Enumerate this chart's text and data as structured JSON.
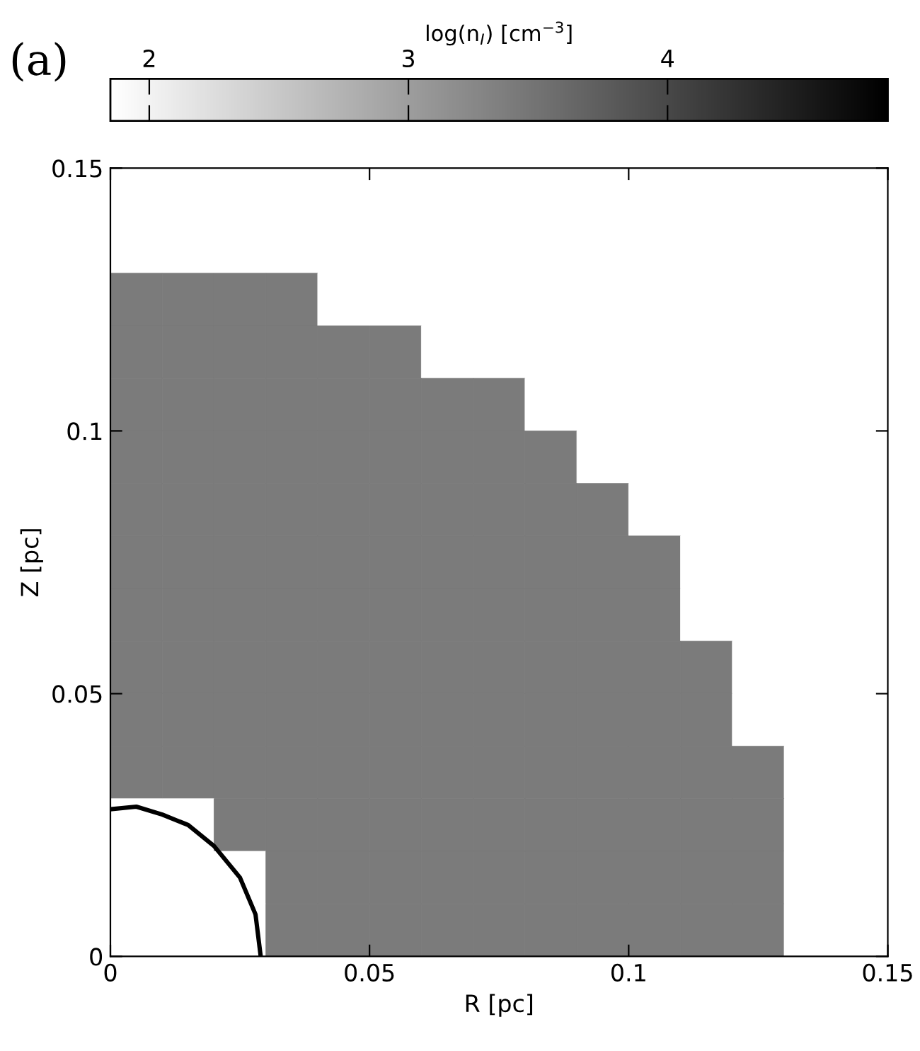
{
  "chart_data": {
    "type": "heatmap",
    "xlabel": "R [pc]",
    "ylabel": "Z [pc]",
    "clabel": "log(n$_{I}$) [cm$^{−3}$]",
    "annotations": [
      "(a)"
    ],
    "xlim": [
      0,
      0.15
    ],
    "ylim": [
      0,
      0.15
    ],
    "xticks": [
      0,
      0.05,
      0.1,
      0.15
    ],
    "yticks": [
      0,
      0.05,
      0.1,
      0.15
    ],
    "clim": [
      1.85,
      4.85
    ],
    "cticks": [
      2,
      3,
      4
    ],
    "cells": [
      [
        1.85,
        1.85,
        1.85,
        1.85,
        1.85,
        1.85,
        1.85,
        1.85,
        1.85,
        1.85,
        1.85,
        1.85,
        1.85,
        1.85,
        1.85
      ],
      [
        1.85,
        1.85,
        1.85,
        1.85,
        1.85,
        1.85,
        1.85,
        1.85,
        1.85,
        1.85,
        1.85,
        1.85,
        1.85,
        1.85,
        1.85
      ],
      [
        3.4,
        3.4,
        3.4,
        3.4,
        1.85,
        1.85,
        1.85,
        1.85,
        1.85,
        1.85,
        1.85,
        1.85,
        1.85,
        1.85,
        1.85
      ],
      [
        3.4,
        3.4,
        3.4,
        3.4,
        3.4,
        3.4,
        1.85,
        1.85,
        1.85,
        1.85,
        1.85,
        1.85,
        1.85,
        1.85,
        1.85
      ],
      [
        3.4,
        3.4,
        3.4,
        3.4,
        3.4,
        3.4,
        3.4,
        3.4,
        1.85,
        1.85,
        1.85,
        1.85,
        1.85,
        1.85,
        1.85
      ],
      [
        3.4,
        3.4,
        3.4,
        3.4,
        3.4,
        3.4,
        3.4,
        3.4,
        3.4,
        1.85,
        1.85,
        1.85,
        1.85,
        1.85,
        1.85
      ],
      [
        3.4,
        3.4,
        3.4,
        3.4,
        3.4,
        3.4,
        3.4,
        3.4,
        3.4,
        3.4,
        1.85,
        1.85,
        1.85,
        1.85,
        1.85
      ],
      [
        3.4,
        3.4,
        3.4,
        3.4,
        3.4,
        3.4,
        3.4,
        3.4,
        3.4,
        3.4,
        3.4,
        1.85,
        1.85,
        1.85,
        1.85
      ],
      [
        3.4,
        3.4,
        3.4,
        3.4,
        3.4,
        3.4,
        3.4,
        3.4,
        3.4,
        3.4,
        3.4,
        1.85,
        1.85,
        1.85,
        1.85
      ],
      [
        3.4,
        3.4,
        3.4,
        3.4,
        3.4,
        3.4,
        3.4,
        3.4,
        3.4,
        3.4,
        3.4,
        3.4,
        1.85,
        1.85,
        1.85
      ],
      [
        3.4,
        3.4,
        3.4,
        3.4,
        3.4,
        3.4,
        3.4,
        3.4,
        3.4,
        3.4,
        3.4,
        3.4,
        1.85,
        1.85,
        1.85
      ],
      [
        3.4,
        3.4,
        3.4,
        3.4,
        3.4,
        3.4,
        3.4,
        3.4,
        3.4,
        3.4,
        3.4,
        3.4,
        3.4,
        1.85,
        1.85
      ],
      [
        1.85,
        1.85,
        3.4,
        3.4,
        3.4,
        3.4,
        3.4,
        3.4,
        3.4,
        3.4,
        3.4,
        3.4,
        3.4,
        1.85,
        1.85
      ],
      [
        1.85,
        1.85,
        1.85,
        3.4,
        3.4,
        3.4,
        3.4,
        3.4,
        3.4,
        3.4,
        3.4,
        3.4,
        3.4,
        1.85,
        1.85
      ],
      [
        1.85,
        1.85,
        1.85,
        3.4,
        3.4,
        3.4,
        3.4,
        3.4,
        3.4,
        3.4,
        3.4,
        3.4,
        3.4,
        1.85,
        1.85
      ]
    ],
    "series": [
      {
        "type": "line",
        "color": "#000000",
        "x": [
          0,
          0.005,
          0.01,
          0.015,
          0.02,
          0.025,
          0.028,
          0.029
        ],
        "values": [
          0.028,
          0.0285,
          0.027,
          0.025,
          0.021,
          0.015,
          0.008,
          0
        ]
      }
    ]
  }
}
